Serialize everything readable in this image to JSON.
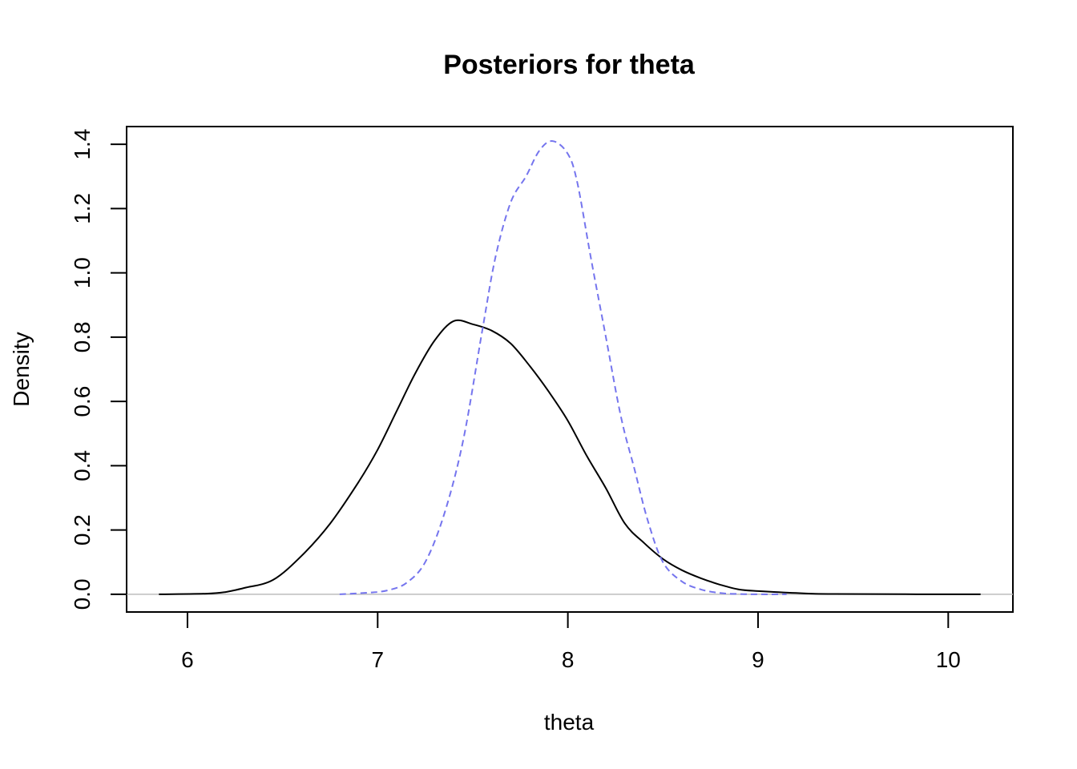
{
  "chart_data": {
    "type": "line",
    "title": "Posteriors for theta",
    "xlabel": "theta",
    "ylabel": "Density",
    "xlim": [
      5.68,
      10.34
    ],
    "ylim": [
      -0.055,
      1.455
    ],
    "xticks": [
      6,
      7,
      8,
      9,
      10
    ],
    "yticks": [
      0.0,
      0.2,
      0.4,
      0.6,
      0.8,
      1.0,
      1.2,
      1.4
    ],
    "xtick_labels": [
      "6",
      "7",
      "8",
      "9",
      "10"
    ],
    "ytick_labels": [
      "0.0",
      "0.2",
      "0.4",
      "0.6",
      "0.8",
      "1.0",
      "1.2",
      "1.4"
    ],
    "grid": false,
    "legend": "none",
    "baseline": 0,
    "series": [
      {
        "color": "#000000",
        "dash": "solid",
        "x": [
          5.85,
          6.1,
          6.2,
          6.3,
          6.45,
          6.6,
          6.75,
          6.9,
          7.0,
          7.1,
          7.2,
          7.3,
          7.4,
          7.5,
          7.6,
          7.7,
          7.8,
          7.9,
          8.0,
          8.1,
          8.2,
          8.3,
          8.4,
          8.5,
          8.6,
          8.7,
          8.8,
          8.9,
          9.0,
          9.2,
          9.4,
          10.17
        ],
        "y": [
          0.0,
          0.002,
          0.007,
          0.02,
          0.045,
          0.12,
          0.22,
          0.35,
          0.45,
          0.57,
          0.69,
          0.79,
          0.85,
          0.84,
          0.82,
          0.78,
          0.71,
          0.63,
          0.54,
          0.43,
          0.33,
          0.22,
          0.16,
          0.11,
          0.075,
          0.05,
          0.03,
          0.015,
          0.01,
          0.004,
          0.001,
          0.0
        ]
      },
      {
        "color": "#7575ee",
        "dash": "dashed",
        "x": [
          6.8,
          6.95,
          7.05,
          7.15,
          7.25,
          7.35,
          7.45,
          7.55,
          7.62,
          7.7,
          7.78,
          7.85,
          7.92,
          8.0,
          8.05,
          8.12,
          8.2,
          8.28,
          8.35,
          8.42,
          8.5,
          8.6,
          8.7,
          8.8,
          8.9,
          9.0,
          9.15
        ],
        "y": [
          0.0,
          0.005,
          0.012,
          0.035,
          0.1,
          0.25,
          0.48,
          0.82,
          1.05,
          1.22,
          1.3,
          1.38,
          1.41,
          1.37,
          1.28,
          1.05,
          0.8,
          0.55,
          0.39,
          0.23,
          0.1,
          0.04,
          0.015,
          0.004,
          0.001,
          0.0,
          0.0
        ]
      }
    ]
  }
}
